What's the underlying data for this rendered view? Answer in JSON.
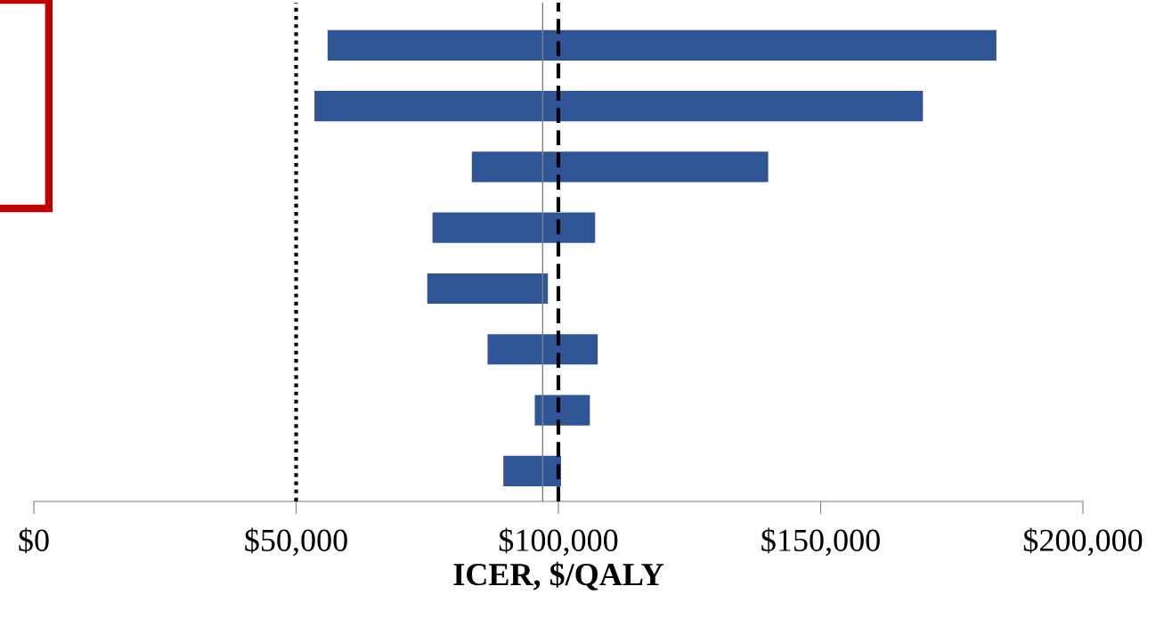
{
  "chart_data": {
    "type": "bar",
    "orientation": "horizontal",
    "xlabel": "ICER, $/QALY",
    "categories": [
      null,
      null,
      null,
      null,
      null,
      null,
      null,
      null
    ],
    "base": [
      56000,
      53500,
      83500,
      76000,
      75000,
      86500,
      95500,
      89500
    ],
    "values": [
      127500,
      116000,
      56500,
      31000,
      23000,
      21000,
      10500,
      11000
    ],
    "color": "#2f5597",
    "xlim": [
      0,
      200000
    ],
    "xticks": [
      {
        "value": 0,
        "label": "$0"
      },
      {
        "value": 50000,
        "label": "$50,000"
      },
      {
        "value": 100000,
        "label": "$100,000"
      },
      {
        "value": 150000,
        "label": "$150,000"
      },
      {
        "value": 200000,
        "label": "$200,000"
      }
    ],
    "ref_lines": [
      {
        "axis": "x",
        "value": 50000,
        "color": "#000000",
        "line_style": "dotted"
      },
      {
        "axis": "x",
        "value": 100000,
        "color": "#000000",
        "line_style": "dashed"
      },
      {
        "axis": "x",
        "value": 97000,
        "color": "#7f7f7f",
        "line_style": "solid"
      }
    ],
    "grid": false,
    "legend": false,
    "tick_labels": "x"
  }
}
